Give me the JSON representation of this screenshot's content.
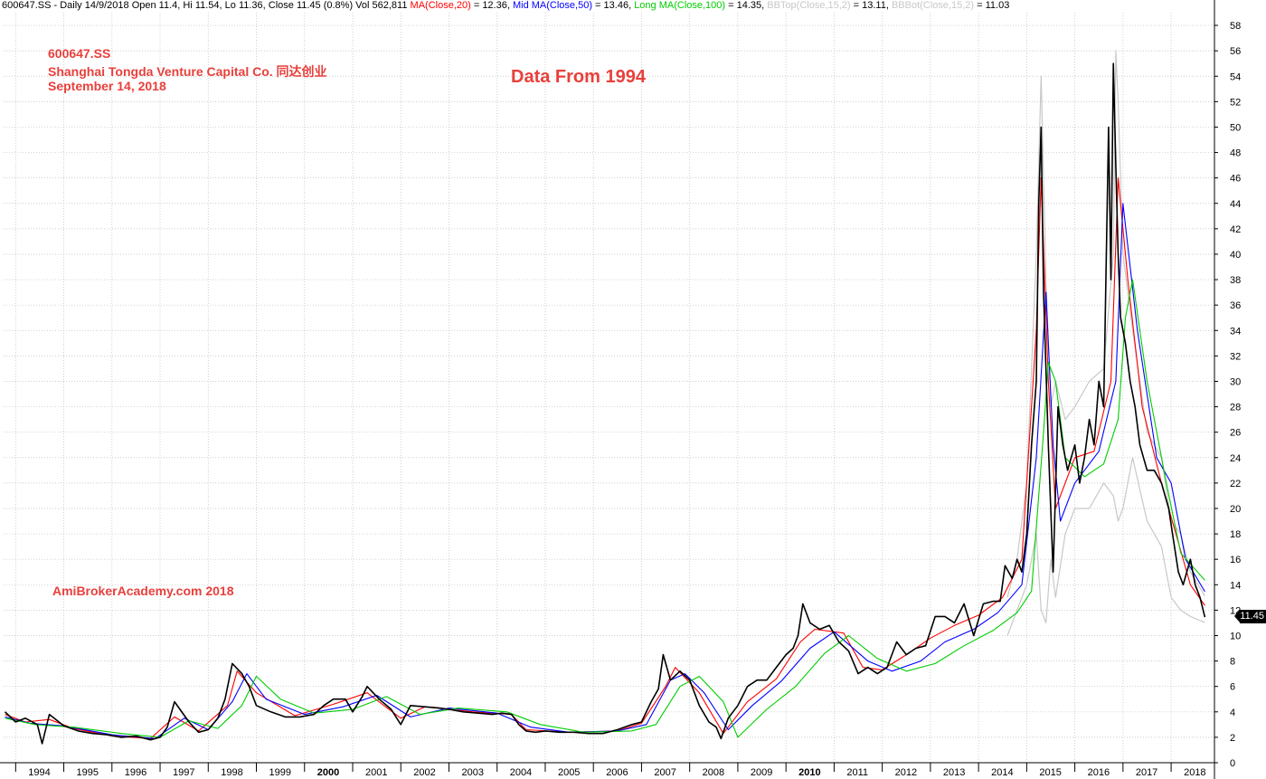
{
  "header": {
    "prefix": "600647.SS - Daily 14/9/2018 Open 11.4, Hi 11.54, Lo 11.36, Close 11.45 (0.8%) Vol 562,811",
    "ma20_label": "MA(Close,20)",
    "ma20_value": " = 12.36, ",
    "ma50_label": "Mid MA(Close,50)",
    "ma50_value": " = 13.46, ",
    "ma100_label": "Long MA(Close,100)",
    "ma100_value": " = 14.35, ",
    "bbtop_label": "BBTop(Close,15,2)",
    "bbtop_value": " = 13.11, ",
    "bbbot_label": "BBBot(Close,15,2)",
    "bbbot_value": " = 11.03"
  },
  "annotations": {
    "ticker": "600647.SS",
    "company": "Shanghai Tongda Venture Capital Co. 同达创业",
    "date": "September 14, 2018",
    "center": "Data From 1994",
    "brand": "AmiBrokerAcademy.com  2018"
  },
  "last_price": "11.45",
  "colors": {
    "price": "#000000",
    "ma20": "#ff0000",
    "ma50": "#0000ff",
    "ma100": "#00cc00",
    "bollinger": "#c8c8c8",
    "annotation": "#e8403c",
    "grid": "#bdbdbd"
  },
  "chart_data": {
    "type": "line",
    "title": "",
    "xlabel": "",
    "ylabel": "",
    "ylim": [
      0,
      59
    ],
    "xlim": [
      1993.75,
      2018.9
    ],
    "grid": true,
    "y_ticks": [
      0,
      2,
      4,
      6,
      8,
      10,
      12,
      14,
      16,
      18,
      20,
      22,
      24,
      26,
      28,
      30,
      32,
      34,
      36,
      38,
      40,
      42,
      44,
      46,
      48,
      50,
      52,
      54,
      56,
      58
    ],
    "x_ticks": [
      {
        "x": 1994.0,
        "label": "1994"
      },
      {
        "x": 1995.0,
        "label": "1995"
      },
      {
        "x": 1996.0,
        "label": "1996"
      },
      {
        "x": 1997.0,
        "label": "1997"
      },
      {
        "x": 1998.0,
        "label": "1998"
      },
      {
        "x": 1999.0,
        "label": "1999"
      },
      {
        "x": 2000.0,
        "label": "2000"
      },
      {
        "x": 2001.0,
        "label": "2001"
      },
      {
        "x": 2002.0,
        "label": "2002"
      },
      {
        "x": 2003.0,
        "label": "2003"
      },
      {
        "x": 2004.0,
        "label": "2004"
      },
      {
        "x": 2005.0,
        "label": "2005"
      },
      {
        "x": 2006.0,
        "label": "2006"
      },
      {
        "x": 2007.0,
        "label": "2007"
      },
      {
        "x": 2008.0,
        "label": "2008"
      },
      {
        "x": 2009.0,
        "label": "2009"
      },
      {
        "x": 2010.0,
        "label": "2010"
      },
      {
        "x": 2011.0,
        "label": "2011"
      },
      {
        "x": 2012.0,
        "label": "2012"
      },
      {
        "x": 2013.0,
        "label": "2013"
      },
      {
        "x": 2014.0,
        "label": "2014"
      },
      {
        "x": 2015.0,
        "label": "2015"
      },
      {
        "x": 2016.0,
        "label": "2016"
      },
      {
        "x": 2017.0,
        "label": "2017"
      },
      {
        "x": 2018.0,
        "label": "2018"
      }
    ],
    "bold_x_labels": [
      "2000",
      "2010"
    ],
    "series": [
      {
        "name": "Price",
        "x": [
          1993.78,
          1994.0,
          1994.2,
          1994.45,
          1994.55,
          1994.7,
          1995.0,
          1995.3,
          1995.6,
          1995.9,
          1996.2,
          1996.5,
          1996.8,
          1997.0,
          1997.15,
          1997.3,
          1997.6,
          1997.8,
          1998.0,
          1998.2,
          1998.35,
          1998.5,
          1998.7,
          1998.85,
          1999.0,
          1999.3,
          1999.6,
          1999.9,
          2000.2,
          2000.4,
          2000.6,
          2000.85,
          2001.0,
          2001.2,
          2001.3,
          2001.55,
          2001.8,
          2002.0,
          2002.2,
          2002.5,
          2002.8,
          2003.0,
          2003.3,
          2003.6,
          2003.9,
          2004.1,
          2004.3,
          2004.45,
          2004.6,
          2004.8,
          2005.0,
          2005.3,
          2005.6,
          2005.9,
          2006.2,
          2006.5,
          2006.8,
          2007.0,
          2007.2,
          2007.35,
          2007.45,
          2007.6,
          2007.8,
          2008.0,
          2008.2,
          2008.4,
          2008.55,
          2008.65,
          2008.8,
          2009.0,
          2009.2,
          2009.4,
          2009.6,
          2009.8,
          2010.0,
          2010.15,
          2010.25,
          2010.35,
          2010.5,
          2010.7,
          2010.9,
          2011.1,
          2011.3,
          2011.5,
          2011.7,
          2011.9,
          2012.1,
          2012.3,
          2012.5,
          2012.7,
          2012.9,
          2013.1,
          2013.3,
          2013.5,
          2013.7,
          2013.9,
          2014.1,
          2014.3,
          2014.45,
          2014.55,
          2014.7,
          2014.8,
          2014.9,
          2015.0,
          2015.1,
          2015.2,
          2015.25,
          2015.3,
          2015.35,
          2015.45,
          2015.55,
          2015.65,
          2015.75,
          2015.85,
          2016.0,
          2016.1,
          2016.2,
          2016.3,
          2016.4,
          2016.5,
          2016.6,
          2016.7,
          2016.75,
          2016.8,
          2016.85,
          2016.9,
          2016.95,
          2017.05,
          2017.15,
          2017.25,
          2017.35,
          2017.5,
          2017.65,
          2017.8,
          2017.95,
          2018.05,
          2018.15,
          2018.25,
          2018.4,
          2018.5,
          2018.6,
          2018.7
        ],
        "values": [
          4.0,
          3.2,
          3.5,
          3.0,
          1.5,
          3.8,
          2.9,
          2.5,
          2.3,
          2.2,
          2.0,
          2.1,
          1.8,
          2.0,
          2.8,
          4.8,
          3.2,
          2.4,
          2.6,
          3.5,
          5.0,
          7.8,
          7.0,
          6.0,
          4.5,
          4.0,
          3.6,
          3.6,
          3.8,
          4.5,
          5.0,
          5.0,
          4.0,
          5.2,
          6.0,
          5.0,
          4.2,
          3.0,
          4.5,
          4.4,
          4.3,
          4.2,
          4.0,
          3.9,
          3.8,
          3.9,
          3.8,
          3.0,
          2.5,
          2.4,
          2.5,
          2.4,
          2.4,
          2.3,
          2.3,
          2.6,
          3.0,
          3.2,
          4.8,
          5.8,
          8.5,
          6.5,
          7.2,
          6.5,
          4.5,
          3.2,
          2.8,
          1.9,
          3.5,
          4.5,
          6.0,
          6.5,
          6.5,
          7.5,
          8.5,
          9.0,
          10.0,
          12.5,
          11.0,
          10.5,
          10.8,
          9.5,
          8.8,
          7.0,
          7.5,
          7.0,
          7.5,
          9.5,
          8.5,
          9.0,
          9.2,
          11.5,
          11.5,
          11.0,
          12.5,
          10.0,
          12.5,
          12.7,
          12.7,
          15.5,
          14.5,
          16.0,
          15.0,
          18.0,
          25.0,
          30.0,
          44.0,
          50.0,
          37.0,
          25.0,
          15.0,
          28.0,
          25.0,
          23.0,
          25.0,
          22.0,
          24.0,
          27.0,
          25.0,
          30.0,
          28.0,
          50.0,
          38.0,
          55.0,
          47.0,
          40.0,
          35.0,
          33.0,
          30.0,
          28.0,
          25.0,
          23.0,
          23.0,
          22.0,
          20.0,
          17.5,
          15.0,
          14.0,
          16.0,
          14.0,
          13.0,
          11.45
        ]
      },
      {
        "name": "MA(Close,20)",
        "x": [
          1993.78,
          1994.2,
          1994.7,
          1995.2,
          1996.0,
          1996.8,
          1997.3,
          1997.8,
          1998.4,
          1998.6,
          1999.0,
          1999.8,
          2000.6,
          2001.3,
          2002.0,
          2002.5,
          2003.5,
          2004.3,
          2004.6,
          2005.5,
          2006.5,
          2007.0,
          2007.5,
          2007.7,
          2008.2,
          2008.7,
          2009.2,
          2009.8,
          2010.3,
          2010.6,
          2011.2,
          2011.6,
          2012.0,
          2012.5,
          2013.0,
          2013.5,
          2014.0,
          2014.5,
          2014.9,
          2015.2,
          2015.3,
          2015.45,
          2015.6,
          2016.0,
          2016.4,
          2016.75,
          2016.9,
          2017.1,
          2017.4,
          2017.8,
          2018.1,
          2018.4,
          2018.7
        ],
        "values": [
          3.8,
          3.2,
          3.4,
          2.7,
          2.1,
          1.9,
          3.6,
          2.5,
          4.5,
          7.2,
          5.5,
          3.7,
          4.6,
          5.5,
          3.5,
          4.4,
          4.0,
          3.8,
          2.6,
          2.4,
          2.5,
          3.1,
          6.0,
          7.5,
          5.5,
          2.3,
          4.8,
          6.6,
          9.5,
          10.5,
          10.2,
          7.5,
          7.3,
          8.5,
          9.8,
          10.8,
          11.6,
          13.0,
          16.0,
          34.0,
          46.0,
          30.0,
          20.0,
          24.0,
          24.5,
          30.0,
          46.0,
          38.0,
          28.0,
          22.0,
          18.0,
          14.0,
          12.36
        ]
      },
      {
        "name": "Mid MA(Close,50)",
        "x": [
          1993.78,
          1994.3,
          1995.0,
          1996.0,
          1996.9,
          1997.5,
          1998.0,
          1998.5,
          1998.8,
          1999.2,
          2000.0,
          2000.8,
          2001.5,
          2002.2,
          2003.0,
          2004.0,
          2004.7,
          2005.5,
          2006.5,
          2007.1,
          2007.6,
          2007.9,
          2008.3,
          2008.8,
          2009.3,
          2009.9,
          2010.5,
          2011.0,
          2011.7,
          2012.2,
          2012.8,
          2013.3,
          2013.9,
          2014.4,
          2014.9,
          2015.2,
          2015.4,
          2015.55,
          2015.7,
          2016.0,
          2016.5,
          2016.85,
          2017.0,
          2017.3,
          2017.7,
          2018.0,
          2018.3,
          2018.7
        ],
        "values": [
          3.6,
          3.1,
          2.9,
          2.2,
          1.9,
          3.5,
          2.6,
          4.8,
          7.0,
          5.0,
          3.8,
          4.4,
          5.3,
          3.6,
          4.3,
          3.9,
          2.8,
          2.4,
          2.5,
          3.0,
          6.5,
          7.0,
          5.5,
          2.6,
          4.5,
          6.4,
          9.0,
          10.3,
          8.0,
          7.2,
          8.0,
          9.5,
          10.5,
          11.8,
          14.0,
          24.0,
          37.0,
          25.0,
          19.0,
          22.0,
          24.5,
          30.0,
          44.0,
          34.0,
          24.0,
          22.0,
          16.0,
          13.46
        ]
      },
      {
        "name": "Long MA(Close,100)",
        "x": [
          1993.78,
          1994.4,
          1995.2,
          1996.2,
          1997.0,
          1997.6,
          1998.2,
          1998.7,
          1999.0,
          1999.5,
          2000.2,
          2001.0,
          2001.7,
          2002.4,
          2003.2,
          2004.2,
          2004.9,
          2005.8,
          2006.8,
          2007.3,
          2007.8,
          2008.2,
          2008.7,
          2009.0,
          2009.6,
          2010.2,
          2010.8,
          2011.3,
          2011.9,
          2012.5,
          2013.1,
          2013.7,
          2014.3,
          2014.8,
          2015.1,
          2015.35,
          2015.45,
          2015.6,
          2015.8,
          2016.2,
          2016.6,
          2016.9,
          2017.05,
          2017.2,
          2017.5,
          2017.9,
          2018.2,
          2018.7
        ],
        "values": [
          3.5,
          3.0,
          2.8,
          2.3,
          2.0,
          3.3,
          2.7,
          4.5,
          6.8,
          5.0,
          3.9,
          4.2,
          5.2,
          3.8,
          4.3,
          4.0,
          3.0,
          2.4,
          2.5,
          3.0,
          6.0,
          6.8,
          4.8,
          2.0,
          4.2,
          6.0,
          8.6,
          10.0,
          8.2,
          7.2,
          7.8,
          9.2,
          10.4,
          11.8,
          13.5,
          26.0,
          31.5,
          30.0,
          24.0,
          22.5,
          23.5,
          27.0,
          35.0,
          38.0,
          30.0,
          22.0,
          16.5,
          14.35
        ]
      },
      {
        "name": "BBTop(Close,15,2)",
        "x": [
          2014.6,
          2014.8,
          2015.0,
          2015.2,
          2015.3,
          2015.4,
          2015.5,
          2015.6,
          2015.8,
          2016.0,
          2016.3,
          2016.6,
          2016.8,
          2016.85,
          2016.9,
          2017.0,
          2017.2,
          2017.5,
          2017.8,
          2018.0,
          2018.2,
          2018.4,
          2018.7
        ],
        "values": [
          13.0,
          16.0,
          22.0,
          40.0,
          54.0,
          38.0,
          28.0,
          30.0,
          27.0,
          28.0,
          30.0,
          31.0,
          40.0,
          56.0,
          52.0,
          40.0,
          34.0,
          26.0,
          24.0,
          19.0,
          18.0,
          15.0,
          13.11
        ]
      },
      {
        "name": "BBBot(Close,15,2)",
        "x": [
          2014.6,
          2014.8,
          2015.0,
          2015.2,
          2015.3,
          2015.4,
          2015.5,
          2015.6,
          2015.8,
          2016.0,
          2016.3,
          2016.6,
          2016.8,
          2016.9,
          2017.0,
          2017.2,
          2017.5,
          2017.8,
          2018.0,
          2018.2,
          2018.4,
          2018.7
        ],
        "values": [
          10.0,
          12.0,
          14.0,
          18.0,
          12.0,
          11.0,
          16.0,
          13.0,
          18.0,
          20.0,
          20.0,
          22.0,
          21.0,
          19.0,
          20.0,
          24.0,
          19.0,
          17.0,
          13.0,
          12.0,
          11.5,
          11.03
        ]
      }
    ]
  }
}
